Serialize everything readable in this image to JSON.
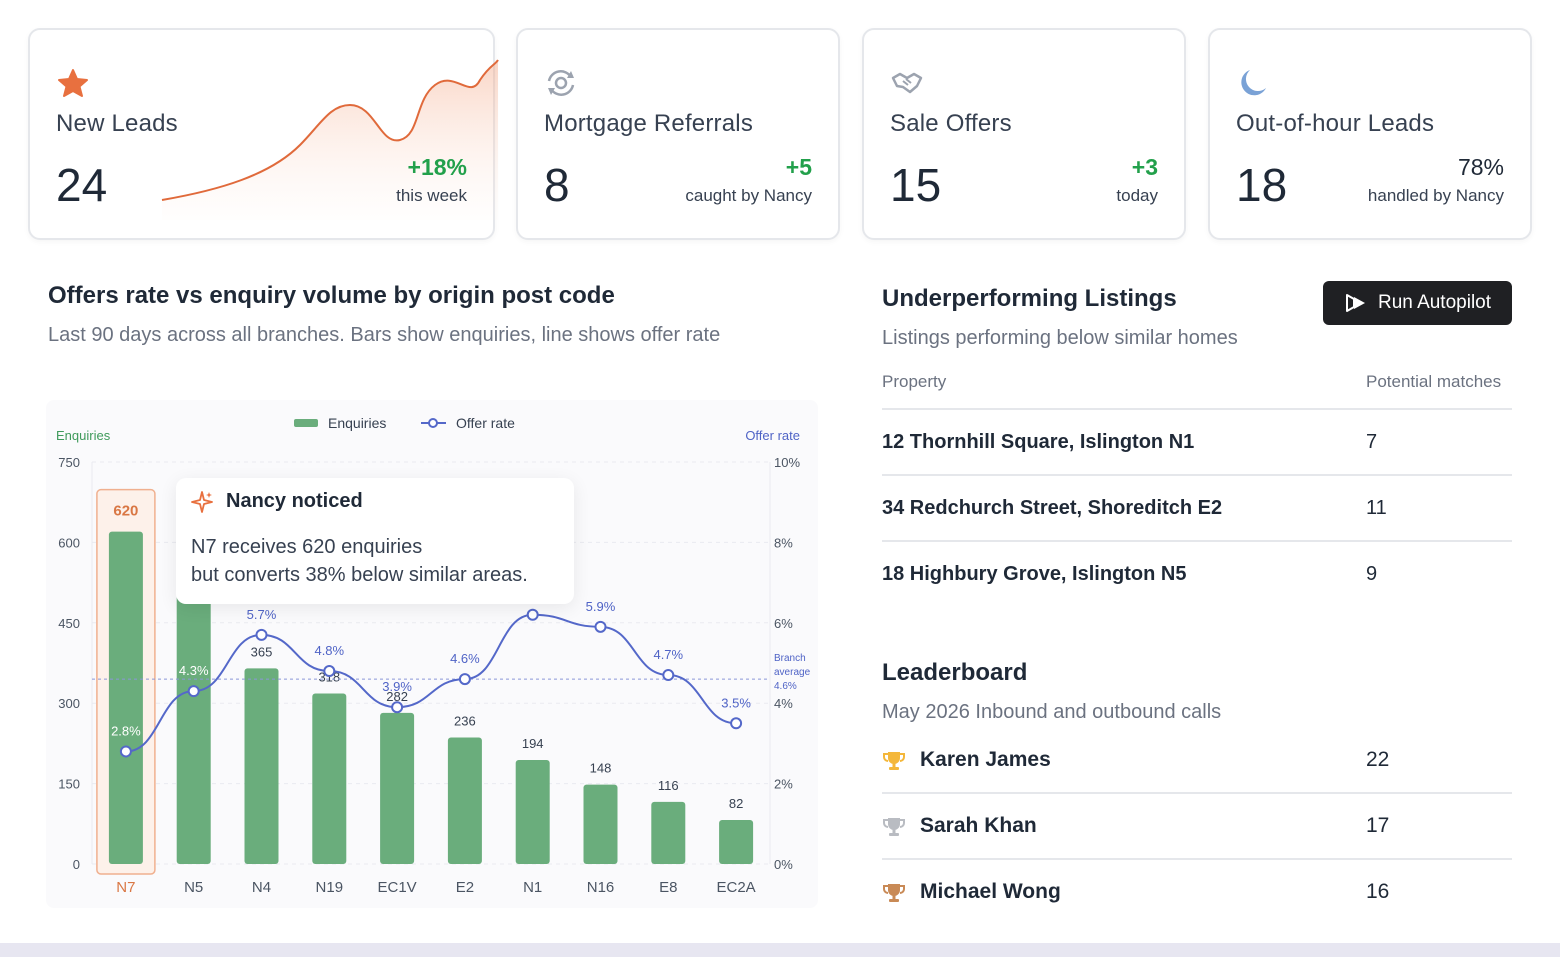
{
  "kpis": [
    {
      "label": "New Leads",
      "value": "24",
      "delta": "+18%",
      "sub": "this week",
      "icon": "star-icon",
      "color": "#e8703f"
    },
    {
      "label": "Mortgage Referrals",
      "value": "8",
      "delta": "+5",
      "sub": "caught by Nancy",
      "icon": "refresh-target-icon",
      "color": "#9ca3af"
    },
    {
      "label": "Sale Offers",
      "value": "15",
      "delta": "+3",
      "sub": "today",
      "icon": "handshake-icon",
      "color": "#9ca3af"
    },
    {
      "label": "Out-of-hour Leads",
      "value": "18",
      "delta": "78%",
      "sub": "handled by Nancy",
      "icon": "moon-icon",
      "color": "#7aa2d6"
    }
  ],
  "chart_section": {
    "title": "Offers rate vs enquiry volume by origin post code",
    "subtitle": "Last 90 days across all branches. Bars show enquiries, line shows offer rate"
  },
  "callout": {
    "title": "Nancy noticed",
    "line1": "N7 receives 620 enquiries",
    "line2": "but converts 38% below similar areas."
  },
  "chart_data": {
    "type": "bar",
    "categories": [
      "N7",
      "N5",
      "N4",
      "N19",
      "EC1V",
      "E2",
      "N1",
      "N16",
      "E8",
      "EC2A"
    ],
    "series": [
      {
        "name": "Enquiries",
        "values": [
          620,
          560,
          365,
          318,
          282,
          236,
          194,
          148,
          116,
          82
        ],
        "color": "#6aad7c",
        "axis": "left"
      },
      {
        "name": "Offer rate",
        "values": [
          2.8,
          4.3,
          5.7,
          4.8,
          3.9,
          4.6,
          6.2,
          5.9,
          4.7,
          3.5
        ],
        "color": "#5468c9",
        "axis": "right"
      }
    ],
    "bar_labels": [
      "620",
      "",
      "365",
      "318",
      "282",
      "236",
      "194",
      "148",
      "116",
      "82"
    ],
    "line_labels": [
      "2.8%",
      "4.3%",
      "5.7%",
      "4.8%",
      "3.9%",
      "4.6%",
      "",
      "5.9%",
      "4.7%",
      "3.5%"
    ],
    "ylabel_left": "Enquiries",
    "ylabel_right": "Offer rate",
    "ylim_left": [
      0,
      750
    ],
    "ylim_right": [
      0,
      10
    ],
    "yticks_left": [
      "0",
      "150",
      "300",
      "450",
      "600",
      "750"
    ],
    "yticks_right": [
      "0%",
      "2%",
      "4%",
      "6%",
      "8%",
      "10%"
    ],
    "reference_line": {
      "value": 4.6,
      "label_lines": [
        "Branch",
        "average",
        "4.6%"
      ]
    },
    "highlight_category": "N7",
    "legend_position": "top-center",
    "legend": [
      "Enquiries",
      "Offer rate"
    ]
  },
  "listings": {
    "title": "Underperforming Listings",
    "subtitle": "Listings performing below similar homes",
    "button_label": "Run Autopilot",
    "col_property": "Property",
    "col_matches": "Potential matches",
    "rows": [
      {
        "property": "12 Thornhill Square, Islington N1",
        "matches": "7"
      },
      {
        "property": "34 Redchurch Street, Shoreditch E2",
        "matches": "11"
      },
      {
        "property": "18 Highbury Grove, Islington N5",
        "matches": "9"
      }
    ]
  },
  "leaderboard": {
    "title": "Leaderboard",
    "subtitle": "May 2026 Inbound and outbound calls",
    "rows": [
      {
        "name": "Karen James",
        "count": "22",
        "icon": "gold-trophy-icon",
        "color": "#f4b73a"
      },
      {
        "name": "Sarah Khan",
        "count": "17",
        "icon": "silver-trophy-icon",
        "color": "#b9bcc2"
      },
      {
        "name": "Michael Wong",
        "count": "16",
        "icon": "bronze-trophy-icon",
        "color": "#c98a56"
      }
    ]
  },
  "colors": {
    "accent_orange": "#e8703f",
    "positive_green": "#22a04b",
    "bar_green": "#6aad7c",
    "line_blue": "#5468c9"
  }
}
